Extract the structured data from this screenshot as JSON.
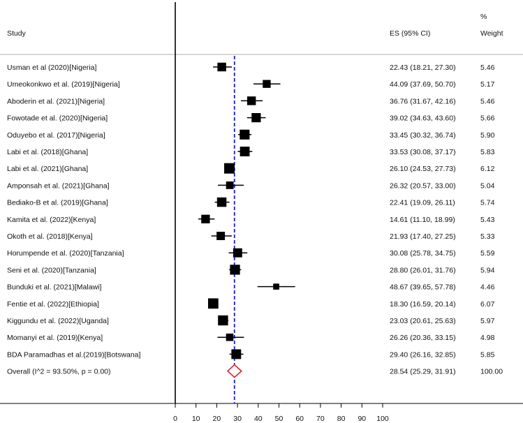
{
  "chart_data": {
    "type": "forest",
    "columns": {
      "study": "Study",
      "es": "ES (95% CI)",
      "weight_line1": "%",
      "weight_line2": "Weight"
    },
    "x_ticks": [
      0,
      10,
      20,
      30,
      40,
      50,
      60,
      70,
      80,
      90,
      100
    ],
    "xlim": [
      0,
      100
    ],
    "reference_line": 28.54,
    "studies": [
      {
        "label": "Usman et al (2020)[Nigeria]",
        "es": 22.43,
        "lo": 18.21,
        "hi": 27.3,
        "ci_text": "22.43 (18.21, 27.30)",
        "weight": "5.46"
      },
      {
        "label": "Umeokonkwo et al. (2019)[Nigeria]",
        "es": 44.09,
        "lo": 37.69,
        "hi": 50.7,
        "ci_text": "44.09 (37.69, 50.70)",
        "weight": "5.17"
      },
      {
        "label": "Aboderin et al. (2021)[Nigeria]",
        "es": 36.76,
        "lo": 31.67,
        "hi": 42.16,
        "ci_text": "36.76 (31.67, 42.16)",
        "weight": "5.46"
      },
      {
        "label": "Fowotade et al. (2020)[Nigeria]",
        "es": 39.02,
        "lo": 34.63,
        "hi": 43.6,
        "ci_text": "39.02 (34.63, 43.60)",
        "weight": "5.66"
      },
      {
        "label": "Oduyebo et al. (2017)[Nigeria]",
        "es": 33.45,
        "lo": 30.32,
        "hi": 36.74,
        "ci_text": "33.45 (30.32, 36.74)",
        "weight": "5.90"
      },
      {
        "label": "Labi et al. (2018)[Ghana]",
        "es": 33.53,
        "lo": 30.08,
        "hi": 37.17,
        "ci_text": "33.53 (30.08, 37.17)",
        "weight": "5.83"
      },
      {
        "label": "Labi et al. (2021)[Ghana]",
        "es": 26.1,
        "lo": 24.53,
        "hi": 27.73,
        "ci_text": "26.10 (24.53, 27.73)",
        "weight": "6.12"
      },
      {
        "label": "Amponsah et al. (2021)[Ghana]",
        "es": 26.32,
        "lo": 20.57,
        "hi": 33.0,
        "ci_text": "26.32 (20.57, 33.00)",
        "weight": "5.04"
      },
      {
        "label": "Bediako-B et al. (2019)[Ghana]",
        "es": 22.41,
        "lo": 19.09,
        "hi": 26.11,
        "ci_text": "22.41 (19.09, 26.11)",
        "weight": "5.74"
      },
      {
        "label": "Kamita et al. (2022)[Kenya]",
        "es": 14.61,
        "lo": 11.1,
        "hi": 18.99,
        "ci_text": "14.61 (11.10, 18.99)",
        "weight": "5.43"
      },
      {
        "label": "Okoth et al. (2018)[Kenya]",
        "es": 21.93,
        "lo": 17.4,
        "hi": 27.25,
        "ci_text": "21.93 (17.40, 27.25)",
        "weight": "5.33"
      },
      {
        "label": "Horumpende et al. (2020)[Tanzania]",
        "es": 30.08,
        "lo": 25.78,
        "hi": 34.75,
        "ci_text": "30.08 (25.78, 34.75)",
        "weight": "5.59"
      },
      {
        "label": "Seni et al. (2020)[Tanzania]",
        "es": 28.8,
        "lo": 26.01,
        "hi": 31.76,
        "ci_text": "28.80 (26.01, 31.76)",
        "weight": "5.94"
      },
      {
        "label": "Bunduki et al. (2021)[Malawi]",
        "es": 48.67,
        "lo": 39.65,
        "hi": 57.78,
        "ci_text": "48.67 (39.65, 57.78)",
        "weight": "4.46"
      },
      {
        "label": "Fentie et al. (2022)[Ethiopia]",
        "es": 18.3,
        "lo": 16.59,
        "hi": 20.14,
        "ci_text": "18.30 (16.59, 20.14)",
        "weight": "6.07"
      },
      {
        "label": "Kiggundu et al. (2022)[Uganda]",
        "es": 23.03,
        "lo": 20.61,
        "hi": 25.63,
        "ci_text": "23.03 (20.61, 25.63)",
        "weight": "5.97"
      },
      {
        "label": "Momanyi et al. (2019)[Kenya]",
        "es": 26.26,
        "lo": 20.36,
        "hi": 33.15,
        "ci_text": "26.26 (20.36, 33.15)",
        "weight": "4.98"
      },
      {
        "label": "BDA Paramadhas et al.(2019)[Botswana]",
        "es": 29.4,
        "lo": 26.16,
        "hi": 32.85,
        "ci_text": "29.40 (26.16, 32.85)",
        "weight": "5.85"
      }
    ],
    "overall": {
      "label": "Overall  (I^2 = 93.50%, p = 0.00)",
      "es": 28.54,
      "lo": 25.29,
      "hi": 31.91,
      "ci_text": "28.54 (25.29, 31.91)",
      "weight": "100.00"
    },
    "colors": {
      "reference_line": "#1a1adb",
      "overall_diamond": "#e0202a",
      "markers": "#000000",
      "header_rule": "#c8c8c8"
    }
  }
}
